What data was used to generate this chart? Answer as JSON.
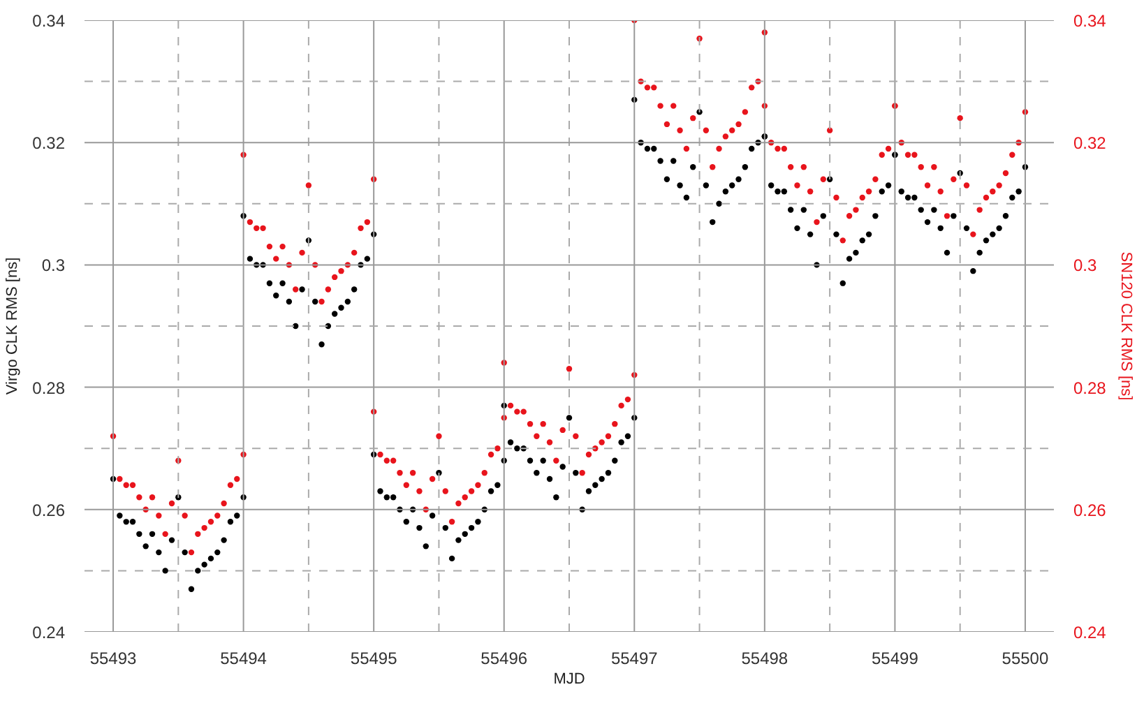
{
  "chart_data": {
    "type": "scatter",
    "xlabel": "MJD",
    "ylabel": "Virgo CLK RMS [ns]",
    "y2label": "SN120 CLK RMS [ns]",
    "x": [
      55493,
      55493.05,
      55493.1,
      55493.15,
      55493.2,
      55493.25,
      55493.3,
      55493.35,
      55493.4,
      55493.45,
      55493.5,
      55493.55,
      55493.6,
      55493.65,
      55493.7,
      55493.75,
      55493.8,
      55493.85,
      55493.9,
      55493.95,
      55494,
      55494,
      55494.05,
      55494.1,
      55494.15,
      55494.2,
      55494.25,
      55494.3,
      55494.35,
      55494.4,
      55494.45,
      55494.5,
      55494.55,
      55494.6,
      55494.65,
      55494.7,
      55494.75,
      55494.8,
      55494.85,
      55494.9,
      55494.95,
      55495,
      55495,
      55495.05,
      55495.1,
      55495.15,
      55495.2,
      55495.25,
      55495.3,
      55495.35,
      55495.4,
      55495.45,
      55495.5,
      55495.55,
      55495.6,
      55495.65,
      55495.7,
      55495.75,
      55495.8,
      55495.85,
      55495.9,
      55495.95,
      55496,
      55496,
      55496.05,
      55496.1,
      55496.15,
      55496.2,
      55496.25,
      55496.3,
      55496.35,
      55496.4,
      55496.45,
      55496.5,
      55496.55,
      55496.6,
      55496.65,
      55496.7,
      55496.75,
      55496.8,
      55496.85,
      55496.9,
      55496.95,
      55497,
      55497,
      55497.05,
      55497.1,
      55497.15,
      55497.2,
      55497.25,
      55497.3,
      55497.35,
      55497.4,
      55497.45,
      55497.5,
      55497.55,
      55497.6,
      55497.65,
      55497.7,
      55497.75,
      55497.8,
      55497.85,
      55497.9,
      55497.95,
      55498,
      55498,
      55498.05,
      55498.1,
      55498.15,
      55498.2,
      55498.25,
      55498.3,
      55498.35,
      55498.4,
      55498.45,
      55498.5,
      55498.55,
      55498.6,
      55498.65,
      55498.7,
      55498.75,
      55498.8,
      55498.85,
      55498.9,
      55498.95,
      55499,
      55499,
      55499.05,
      55499.1,
      55499.15,
      55499.2,
      55499.25,
      55499.3,
      55499.35,
      55499.4,
      55499.45,
      55499.5,
      55499.55,
      55499.6,
      55499.65,
      55499.7,
      55499.75,
      55499.8,
      55499.85,
      55499.9,
      55499.95,
      55500
    ],
    "series": [
      {
        "color": "#000000",
        "values": [
          0.265,
          0.259,
          0.258,
          0.258,
          0.256,
          0.254,
          0.256,
          0.253,
          0.25,
          0.255,
          0.262,
          0.253,
          0.247,
          0.25,
          0.251,
          0.252,
          0.253,
          0.255,
          0.258,
          0.259,
          0.262,
          0.308,
          0.301,
          0.3,
          0.3,
          0.297,
          0.295,
          0.297,
          0.294,
          0.29,
          0.296,
          0.304,
          0.294,
          0.287,
          0.29,
          0.292,
          0.293,
          0.294,
          0.296,
          0.3,
          0.301,
          0.305,
          0.269,
          0.263,
          0.262,
          0.262,
          0.26,
          0.258,
          0.26,
          0.257,
          0.254,
          0.259,
          0.266,
          0.257,
          0.252,
          0.255,
          0.256,
          0.257,
          0.258,
          0.26,
          0.263,
          0.264,
          0.268,
          0.277,
          0.271,
          0.27,
          0.27,
          0.268,
          0.266,
          0.268,
          0.265,
          0.262,
          0.267,
          0.275,
          0.266,
          0.26,
          0.263,
          0.264,
          0.265,
          0.266,
          0.268,
          0.271,
          0.272,
          0.275,
          0.327,
          0.32,
          0.319,
          0.319,
          0.317,
          0.314,
          0.317,
          0.313,
          0.311,
          0.316,
          0.325,
          0.313,
          0.307,
          0.31,
          0.312,
          0.313,
          0.314,
          0.316,
          0.319,
          0.32,
          0.321,
          0.321,
          0.313,
          0.312,
          0.312,
          0.309,
          0.306,
          0.309,
          0.305,
          0.3,
          0.308,
          0.314,
          0.305,
          0.297,
          0.301,
          0.302,
          0.304,
          0.305,
          0.308,
          0.312,
          0.313,
          0.318,
          0.318,
          0.312,
          0.311,
          0.311,
          0.309,
          0.307,
          0.309,
          0.306,
          0.302,
          0.308,
          0.315,
          0.306,
          0.299,
          0.302,
          0.304,
          0.305,
          0.306,
          0.308,
          0.311,
          0.312,
          0.316
        ]
      },
      {
        "color": "#e8141c",
        "axis": "y2",
        "values": [
          0.272,
          0.265,
          0.264,
          0.264,
          0.262,
          0.26,
          0.262,
          0.259,
          0.256,
          0.261,
          0.268,
          0.259,
          0.253,
          0.256,
          0.257,
          0.258,
          0.259,
          0.261,
          0.264,
          0.265,
          0.269,
          0.318,
          0.307,
          0.306,
          0.306,
          0.303,
          0.301,
          0.303,
          0.3,
          0.296,
          0.302,
          0.313,
          0.3,
          0.294,
          0.296,
          0.298,
          0.299,
          0.3,
          0.302,
          0.306,
          0.307,
          0.314,
          0.276,
          0.269,
          0.268,
          0.268,
          0.266,
          0.264,
          0.266,
          0.263,
          0.26,
          0.265,
          0.272,
          0.263,
          0.258,
          0.261,
          0.262,
          0.263,
          0.264,
          0.266,
          0.269,
          0.27,
          0.275,
          0.284,
          0.277,
          0.276,
          0.276,
          0.274,
          0.272,
          0.274,
          0.271,
          0.268,
          0.273,
          0.283,
          0.272,
          0.266,
          0.269,
          0.27,
          0.271,
          0.272,
          0.274,
          0.277,
          0.278,
          0.282,
          0.34,
          0.33,
          0.329,
          0.329,
          0.326,
          0.323,
          0.326,
          0.322,
          0.319,
          0.324,
          0.337,
          0.322,
          0.316,
          0.319,
          0.321,
          0.322,
          0.323,
          0.325,
          0.329,
          0.33,
          0.338,
          0.326,
          0.32,
          0.319,
          0.319,
          0.316,
          0.313,
          0.316,
          0.312,
          0.307,
          0.314,
          0.322,
          0.311,
          0.304,
          0.308,
          0.309,
          0.311,
          0.312,
          0.314,
          0.318,
          0.319,
          0.326,
          0.326,
          0.32,
          0.318,
          0.318,
          0.316,
          0.313,
          0.316,
          0.312,
          0.308,
          0.314,
          0.324,
          0.313,
          0.305,
          0.309,
          0.311,
          0.312,
          0.313,
          0.315,
          0.318,
          0.32,
          0.325
        ]
      }
    ],
    "xlim": [
      55492.78,
      55500.22
    ],
    "xticks": [
      55493,
      {
        "value": 55493.5,
        "label": null
      },
      55494,
      {
        "value": 55494.5,
        "label": null
      },
      55495,
      {
        "value": 55495.5,
        "label": null
      },
      55496,
      {
        "value": 55496.5,
        "label": null
      },
      55497,
      {
        "value": 55497.5,
        "label": null
      },
      55498,
      {
        "value": 55498.5,
        "label": null
      },
      55499,
      {
        "value": 55499.5,
        "label": null
      },
      55500
    ],
    "ylim": [
      0.24,
      0.34
    ],
    "yticks": [
      0.24,
      {
        "value": 0.25,
        "label": null
      },
      0.26,
      {
        "value": 0.27,
        "label": null
      },
      0.28,
      {
        "value": 0.29,
        "label": null
      },
      0.3,
      {
        "value": 0.31,
        "label": null
      },
      0.32,
      {
        "value": 0.33,
        "label": null
      },
      0.34
    ],
    "y2lim": [
      0.24,
      0.34
    ],
    "y2ticks": [
      0.24,
      0.26,
      0.28,
      0.3,
      0.32,
      0.34
    ],
    "grid": true,
    "marker": "circle"
  }
}
